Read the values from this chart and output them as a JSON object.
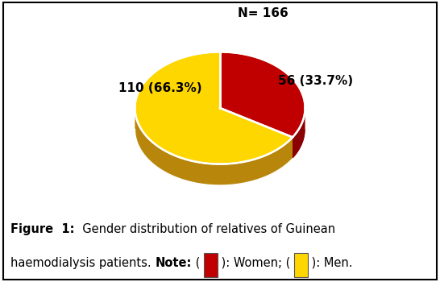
{
  "title_annotation": "N= 166",
  "slices": [
    {
      "label": "Women",
      "value": 56,
      "pct": 33.7,
      "color": "#C00000"
    },
    {
      "label": "Men",
      "value": 110,
      "pct": 66.3,
      "color": "#FFD700"
    }
  ],
  "slice_labels": [
    "56 (33.7%)",
    "110 (66.3%)"
  ],
  "pie_colors": [
    "#C00000",
    "#FFD700"
  ],
  "shadow_color_men": "#B8860B",
  "shadow_color_women": "#8B0000",
  "background_color": "#FFFFFF",
  "border_color": "#000000",
  "label_fontsize": 11,
  "caption_fontsize": 10.5,
  "n_annotation_fontsize": 11
}
